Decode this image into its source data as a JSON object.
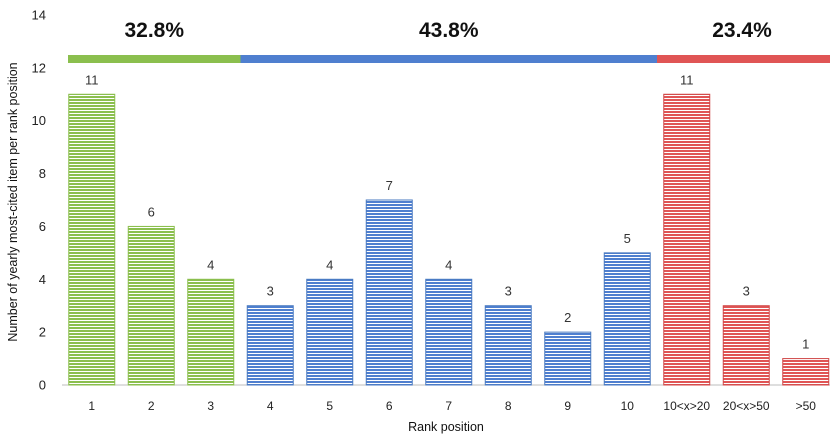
{
  "chart_data": {
    "type": "bar",
    "xlabel": "Rank position",
    "ylabel": "Number of yearly most-cited item per rank position",
    "ylim": [
      0,
      14
    ],
    "yticks": [
      0,
      2,
      4,
      6,
      8,
      10,
      12,
      14
    ],
    "grid": false,
    "categories": [
      "1",
      "2",
      "3",
      "4",
      "5",
      "6",
      "7",
      "8",
      "9",
      "10",
      "10<x>20",
      "20<x>50",
      ">50"
    ],
    "values": [
      11,
      6,
      4,
      3,
      4,
      7,
      4,
      3,
      2,
      5,
      11,
      3,
      1
    ],
    "bar_groups": [
      0,
      0,
      0,
      1,
      1,
      1,
      1,
      1,
      1,
      1,
      2,
      2,
      2
    ],
    "groups": [
      {
        "label": "32.8%",
        "color": "#8bbf4e",
        "stroke": "#8bbf4e"
      },
      {
        "label": "43.8%",
        "color": "#4f7fcf",
        "stroke": "#4a7ac0"
      },
      {
        "label": "23.4%",
        "color": "#e05555",
        "stroke": "#d04848"
      }
    ]
  }
}
